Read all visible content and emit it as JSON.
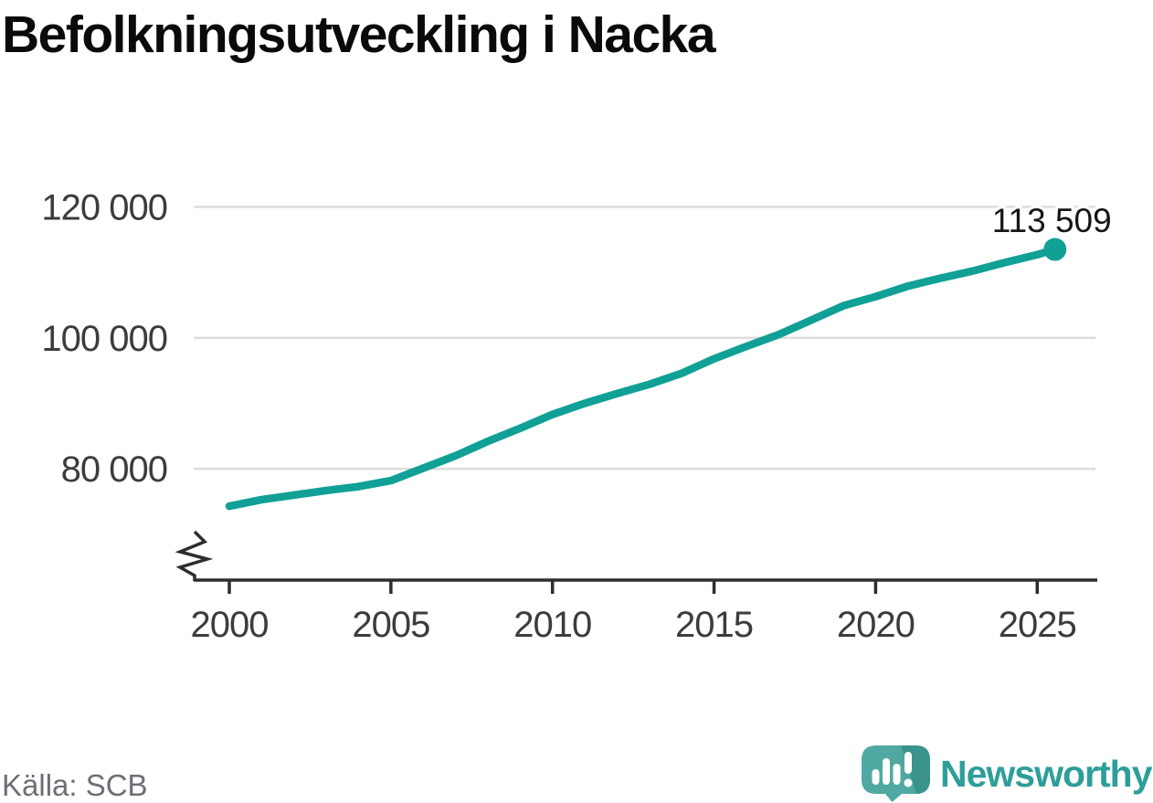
{
  "header": {
    "title": "Befolkningsutveckling i Nacka"
  },
  "footer": {
    "source": "Källa: SCB",
    "brand": "Newsworthy"
  },
  "icons": {
    "logo": "newsworthy-speech-bubble-with-bar-chart-and-exclamation-icon"
  },
  "colors": {
    "background": "#FFFFFF",
    "line": "#10A096",
    "grid": "#DDDDDD",
    "axis": "#2D2D2D",
    "tick_label": "#3C3C3C",
    "annotation": "#161616",
    "source_text": "#6E6E76",
    "brand_teal": "#2E9E99",
    "logo_light": "#4FA9A2",
    "logo_dark": "#3B938D",
    "logo_glyph": "#FFFFFF"
  },
  "chart_data": {
    "type": "line",
    "title": "Befolkningsutveckling i Nacka",
    "xlabel": "",
    "ylabel": "",
    "grid": "horizontal-only",
    "legend": "none",
    "axis_break_bottom_left": true,
    "xlim": [
      1999,
      2027
    ],
    "ylim": [
      63000,
      123000
    ],
    "yticks": [
      {
        "value": 80000,
        "label": "80 000"
      },
      {
        "value": 100000,
        "label": "100 000"
      },
      {
        "value": 120000,
        "label": "120 000"
      }
    ],
    "xticks": [
      {
        "value": 2000,
        "label": "2000"
      },
      {
        "value": 2005,
        "label": "2005"
      },
      {
        "value": 2010,
        "label": "2010"
      },
      {
        "value": 2015,
        "label": "2015"
      },
      {
        "value": 2020,
        "label": "2020"
      },
      {
        "value": 2025,
        "label": "2025"
      }
    ],
    "series": [
      {
        "color": "#10A096",
        "last_point_label": "113 509",
        "points": [
          [
            2000,
            74300
          ],
          [
            2001,
            75300
          ],
          [
            2002,
            76000
          ],
          [
            2003,
            76700
          ],
          [
            2004,
            77300
          ],
          [
            2005,
            78200
          ],
          [
            2006,
            80100
          ],
          [
            2007,
            82000
          ],
          [
            2008,
            84200
          ],
          [
            2009,
            86200
          ],
          [
            2010,
            88300
          ],
          [
            2011,
            90000
          ],
          [
            2012,
            91500
          ],
          [
            2013,
            92900
          ],
          [
            2014,
            94600
          ],
          [
            2015,
            96800
          ],
          [
            2016,
            98700
          ],
          [
            2017,
            100500
          ],
          [
            2018,
            102700
          ],
          [
            2019,
            104900
          ],
          [
            2020,
            106300
          ],
          [
            2021,
            107900
          ],
          [
            2022,
            109100
          ],
          [
            2023,
            110200
          ],
          [
            2024,
            111500
          ],
          [
            2025,
            112700
          ],
          [
            2025.55,
            113509
          ]
        ]
      }
    ],
    "source": "Källa: SCB"
  }
}
